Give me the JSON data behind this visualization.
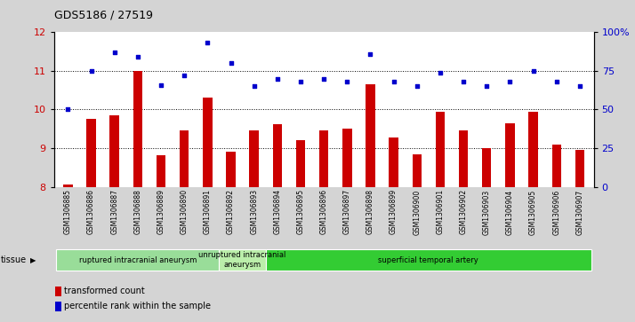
{
  "title": "GDS5186 / 27519",
  "samples": [
    "GSM1306885",
    "GSM1306886",
    "GSM1306887",
    "GSM1306888",
    "GSM1306889",
    "GSM1306890",
    "GSM1306891",
    "GSM1306892",
    "GSM1306893",
    "GSM1306894",
    "GSM1306895",
    "GSM1306896",
    "GSM1306897",
    "GSM1306898",
    "GSM1306899",
    "GSM1306900",
    "GSM1306901",
    "GSM1306902",
    "GSM1306903",
    "GSM1306904",
    "GSM1306905",
    "GSM1306906",
    "GSM1306907"
  ],
  "bar_values": [
    8.05,
    9.75,
    9.85,
    11.0,
    8.82,
    9.45,
    10.3,
    8.9,
    9.45,
    9.62,
    9.2,
    9.45,
    9.5,
    10.65,
    9.28,
    8.85,
    9.95,
    9.45,
    9.0,
    9.65,
    9.95,
    9.1,
    8.95
  ],
  "dot_values_right": [
    50,
    75,
    87,
    84,
    66,
    72,
    93,
    80,
    65,
    70,
    68,
    70,
    68,
    86,
    68,
    65,
    74,
    68,
    65,
    68,
    75,
    68,
    65
  ],
  "bar_color": "#cc0000",
  "dot_color": "#0000cc",
  "ylim_left": [
    8,
    12
  ],
  "ylim_right": [
    0,
    100
  ],
  "yticks_left": [
    8,
    9,
    10,
    11,
    12
  ],
  "yticks_right": [
    0,
    25,
    50,
    75,
    100
  ],
  "ytick_labels_right": [
    "0",
    "25",
    "50",
    "75",
    "100%"
  ],
  "groups": [
    {
      "label": "ruptured intracranial aneurysm",
      "start": 0,
      "end": 6,
      "color": "#99dd99"
    },
    {
      "label": "unruptured intracranial\naneurysm",
      "start": 7,
      "end": 8,
      "color": "#bbeeaa"
    },
    {
      "label": "superficial temporal artery",
      "start": 9,
      "end": 22,
      "color": "#33cc33"
    }
  ],
  "tissue_label": "tissue",
  "legend_bar_label": "transformed count",
  "legend_dot_label": "percentile rank within the sample",
  "bg_color": "#d4d4d4"
}
